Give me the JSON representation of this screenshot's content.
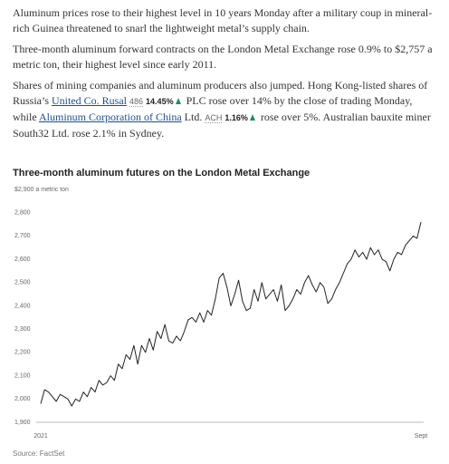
{
  "article": {
    "paragraphs": [
      "Aluminum prices rose to their highest level in 10 years Monday after a military coup in mineral-rich Guinea threatened to snarl the lightweight metal’s supply chain.",
      "Three-month aluminum forward contracts on the London Metal Exchange rose 0.9% to $2,757 a metric ton, their highest level since early 2011.",
      [
        "Shares of mining companies and aluminum producers also jumped. Hong Kong-listed shares of Russia’s ",
        "United Co. Rusal",
        "486",
        "14.45%",
        " PLC rose over 14% by the close of trading Monday, while ",
        "Aluminum Corporation of China",
        " Ltd. ",
        "ACH",
        "1.16%",
        " rose over 5%. Australian bauxite miner South32 Ltd. rose 2.1% in Sydney."
      ]
    ]
  },
  "chart_data": {
    "type": "line",
    "title": "Three-month aluminum futures on the London Metal Exchange",
    "source": "Source: FactSet",
    "color": "#222222",
    "ylim": [
      1900,
      2900
    ],
    "yticks": [
      {
        "value": 2900,
        "label": "$2,900 a metric ton"
      },
      {
        "value": 2800,
        "label": "2,800"
      },
      {
        "value": 2700,
        "label": "2,700"
      },
      {
        "value": 2600,
        "label": "2,600"
      },
      {
        "value": 2500,
        "label": "2,500"
      },
      {
        "value": 2400,
        "label": "2,400"
      },
      {
        "value": 2300,
        "label": "2,300"
      },
      {
        "value": 2200,
        "label": "2,200"
      },
      {
        "value": 2100,
        "label": "2,100"
      },
      {
        "value": 2000,
        "label": "2,000"
      },
      {
        "value": 1900,
        "label": "1,900"
      }
    ],
    "categories": [
      "2021",
      null,
      null,
      null,
      null,
      null,
      null,
      null,
      null,
      null,
      null,
      null,
      null,
      null,
      null,
      null,
      null,
      null,
      null,
      null,
      null,
      null,
      null,
      null,
      null,
      null,
      null,
      null,
      null,
      null,
      null,
      null,
      null,
      null,
      null,
      null,
      null,
      null,
      null,
      null,
      null,
      null,
      null,
      null,
      null,
      null,
      null,
      null,
      null,
      null,
      null,
      null,
      null,
      null,
      null,
      null,
      null,
      null,
      null,
      null,
      null,
      null,
      null,
      null,
      null,
      null,
      null,
      null,
      null,
      null,
      null,
      null,
      null,
      null,
      null,
      null,
      null,
      null,
      null,
      null,
      null,
      null,
      null,
      null,
      null,
      null,
      null,
      null,
      null,
      null,
      null,
      null,
      null,
      null,
      null,
      null,
      null,
      null,
      "Sept"
    ],
    "values": [
      1980,
      2040,
      2030,
      2010,
      1990,
      2020,
      2010,
      2000,
      1970,
      2000,
      1990,
      2030,
      2010,
      2050,
      2030,
      2080,
      2060,
      2070,
      2100,
      2080,
      2150,
      2130,
      2190,
      2170,
      2230,
      2150,
      2230,
      2200,
      2260,
      2210,
      2290,
      2260,
      2320,
      2250,
      2240,
      2270,
      2250,
      2290,
      2340,
      2350,
      2330,
      2370,
      2330,
      2380,
      2360,
      2430,
      2520,
      2540,
      2480,
      2400,
      2450,
      2510,
      2420,
      2380,
      2390,
      2470,
      2420,
      2500,
      2430,
      2450,
      2470,
      2420,
      2490,
      2380,
      2400,
      2430,
      2470,
      2450,
      2500,
      2530,
      2490,
      2460,
      2500,
      2480,
      2410,
      2430,
      2470,
      2500,
      2540,
      2580,
      2600,
      2640,
      2610,
      2630,
      2600,
      2650,
      2620,
      2640,
      2600,
      2590,
      2550,
      2600,
      2630,
      2620,
      2660,
      2680,
      2700,
      2690,
      2760
    ]
  }
}
